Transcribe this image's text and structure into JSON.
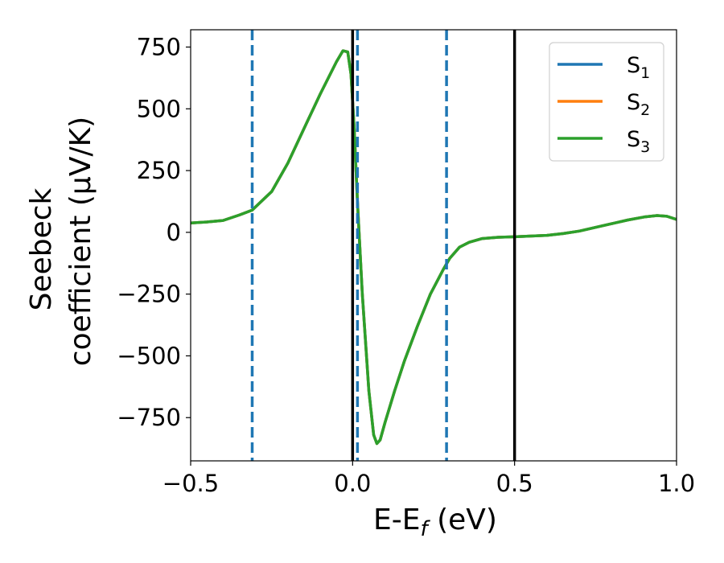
{
  "chart_data": {
    "type": "line",
    "title": "",
    "xlabel": {
      "main": "E-E",
      "sub": "f",
      "unit": " (eV)"
    },
    "ylabel": {
      "line1": "Seebeck",
      "line2": "coefficient  (μV/K)"
    },
    "xlim": [
      -0.5,
      1.0
    ],
    "ylim": [
      -925,
      820
    ],
    "xticks": [
      -0.5,
      0.0,
      0.5,
      1.0
    ],
    "xtick_labels": [
      "−0.5",
      "0.0",
      "0.5",
      "1.0"
    ],
    "yticks": [
      750,
      500,
      250,
      0,
      -250,
      -500,
      -750
    ],
    "ytick_labels": [
      "750",
      "500",
      "250",
      "0",
      "−250",
      "−500",
      "−750"
    ],
    "grid": false,
    "legend": {
      "position": "top-right"
    },
    "series": [
      {
        "name": "S",
        "name_sub": "1",
        "color": "#1f77b4",
        "x": [
          -0.5,
          -0.45,
          -0.4,
          -0.35,
          -0.31,
          -0.25,
          -0.2,
          -0.15,
          -0.1,
          -0.05,
          -0.03,
          -0.015,
          -0.005,
          0.005,
          0.015,
          0.03,
          0.05,
          0.065,
          0.075,
          0.085,
          0.1,
          0.13,
          0.16,
          0.2,
          0.24,
          0.28,
          0.3,
          0.33,
          0.36,
          0.4,
          0.45,
          0.5,
          0.55,
          0.6,
          0.65,
          0.7,
          0.75,
          0.8,
          0.85,
          0.9,
          0.94,
          0.97,
          1.0
        ],
        "y": [
          38,
          42,
          48,
          70,
          90,
          165,
          280,
          420,
          560,
          690,
          735,
          730,
          640,
          420,
          120,
          -250,
          -640,
          -820,
          -855,
          -840,
          -770,
          -640,
          -520,
          -380,
          -250,
          -150,
          -105,
          -60,
          -40,
          -25,
          -20,
          -18,
          -15,
          -12,
          -5,
          5,
          20,
          35,
          50,
          62,
          68,
          65,
          52
        ]
      },
      {
        "name": "S",
        "name_sub": "2",
        "color": "#ff7f0e",
        "x": [
          -0.5,
          -0.45,
          -0.4,
          -0.35,
          -0.31,
          -0.25,
          -0.2,
          -0.15,
          -0.1,
          -0.05,
          -0.03,
          -0.015,
          -0.005,
          0.005,
          0.015,
          0.03,
          0.05,
          0.065,
          0.075,
          0.085,
          0.1,
          0.13,
          0.16,
          0.2,
          0.24,
          0.28,
          0.3,
          0.33,
          0.36,
          0.4,
          0.45,
          0.5,
          0.55,
          0.6,
          0.65,
          0.7,
          0.75,
          0.8,
          0.85,
          0.9,
          0.94,
          0.97,
          1.0
        ],
        "y": [
          38,
          42,
          48,
          70,
          90,
          165,
          280,
          420,
          560,
          690,
          735,
          730,
          640,
          420,
          120,
          -250,
          -640,
          -820,
          -855,
          -840,
          -770,
          -640,
          -520,
          -380,
          -250,
          -150,
          -105,
          -60,
          -40,
          -25,
          -20,
          -18,
          -15,
          -12,
          -5,
          5,
          20,
          35,
          50,
          62,
          68,
          65,
          52
        ]
      },
      {
        "name": "S",
        "name_sub": "3",
        "color": "#2ca02c",
        "x": [
          -0.5,
          -0.45,
          -0.4,
          -0.35,
          -0.31,
          -0.25,
          -0.2,
          -0.15,
          -0.1,
          -0.05,
          -0.03,
          -0.015,
          -0.005,
          0.005,
          0.015,
          0.03,
          0.05,
          0.065,
          0.075,
          0.085,
          0.1,
          0.13,
          0.16,
          0.2,
          0.24,
          0.28,
          0.3,
          0.33,
          0.36,
          0.4,
          0.45,
          0.5,
          0.55,
          0.6,
          0.65,
          0.7,
          0.75,
          0.8,
          0.85,
          0.9,
          0.94,
          0.97,
          1.0
        ],
        "y": [
          38,
          42,
          48,
          70,
          90,
          165,
          280,
          420,
          560,
          690,
          735,
          730,
          640,
          420,
          120,
          -250,
          -640,
          -820,
          -855,
          -840,
          -770,
          -640,
          -520,
          -380,
          -250,
          -150,
          -105,
          -60,
          -40,
          -25,
          -20,
          -18,
          -15,
          -12,
          -5,
          5,
          20,
          35,
          50,
          62,
          68,
          65,
          52
        ]
      }
    ],
    "vlines": [
      {
        "x": -0.31,
        "style": "dashed",
        "color": "#1f77b4"
      },
      {
        "x": 0.015,
        "style": "dashed",
        "color": "#1f77b4"
      },
      {
        "x": 0.29,
        "style": "dashed",
        "color": "#1f77b4"
      },
      {
        "x": 0.0,
        "style": "solid",
        "color": "#000000"
      },
      {
        "x": 0.5,
        "style": "solid",
        "color": "#000000"
      }
    ]
  }
}
